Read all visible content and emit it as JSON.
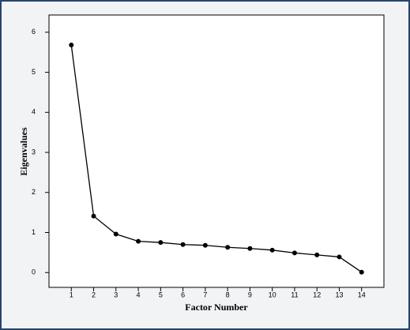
{
  "chart_data": {
    "type": "line",
    "x_label": "Factor Number",
    "y_label": "Eigenvalues",
    "x": [
      1,
      2,
      3,
      4,
      5,
      6,
      7,
      8,
      9,
      10,
      11,
      12,
      13,
      14
    ],
    "values": [
      5.68,
      1.41,
      0.96,
      0.78,
      0.75,
      0.7,
      0.68,
      0.63,
      0.6,
      0.56,
      0.49,
      0.44,
      0.39,
      0.01
    ],
    "color": "#000000",
    "xlim": [
      0,
      15
    ],
    "xticks": [
      1,
      2,
      3,
      4,
      5,
      6,
      7,
      8,
      9,
      10,
      11,
      12,
      13,
      14
    ],
    "ylim": [
      -0.37,
      6.43
    ],
    "yticks": [
      0,
      1,
      2,
      3,
      4,
      5,
      6
    ],
    "grid": false
  }
}
